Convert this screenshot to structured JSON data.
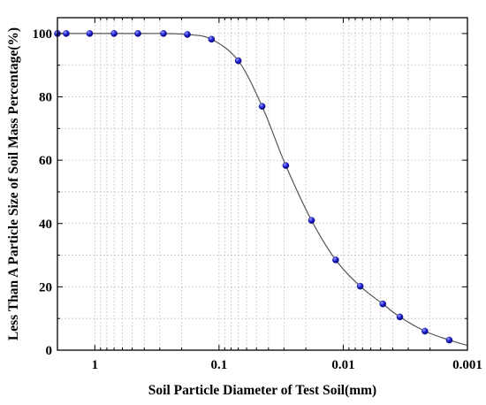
{
  "chart_data": {
    "type": "scatter",
    "xlabel": "Soil Particle Diameter of Test Soil(mm)",
    "ylabel": "Less Than A Particle Size of Soil Mass Percentage(%)",
    "x_scale": "log",
    "x_reversed": true,
    "xlim": [
      2,
      0.001
    ],
    "ylim": [
      0,
      105
    ],
    "x_ticks": [
      1,
      0.1,
      0.01,
      0.001
    ],
    "x_tick_labels": [
      "1",
      "0.1",
      "0.01",
      "0.001"
    ],
    "y_ticks": [
      0,
      20,
      40,
      60,
      80,
      100
    ],
    "y_tick_labels": [
      "0",
      "20",
      "40",
      "60",
      "80",
      "100"
    ],
    "grid": true,
    "series": [
      {
        "marker_color": "#1f1fd6",
        "line_color": "#555555",
        "fit_curve": true,
        "x": [
          2,
          1.7,
          1.1,
          0.7,
          0.45,
          0.28,
          0.18,
          0.115,
          0.07,
          0.045,
          0.029,
          0.018,
          0.0115,
          0.0073,
          0.0048,
          0.0035,
          0.0022,
          0.0014
        ],
        "y": [
          100,
          100,
          100,
          100,
          100,
          100,
          99.7,
          98.2,
          91.4,
          77,
          58.3,
          41,
          28.5,
          20.2,
          14.6,
          10.5,
          6,
          3.2
        ]
      }
    ]
  }
}
